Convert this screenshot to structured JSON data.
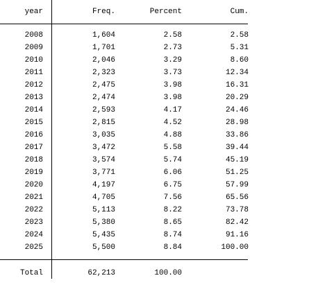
{
  "table": {
    "header": [
      "year",
      "Freq.",
      "Percent",
      "Cum."
    ],
    "rows": [
      [
        "2008",
        "1,604",
        "2.58",
        "2.58"
      ],
      [
        "2009",
        "1,701",
        "2.73",
        "5.31"
      ],
      [
        "2010",
        "2,046",
        "3.29",
        "8.60"
      ],
      [
        "2011",
        "2,323",
        "3.73",
        "12.34"
      ],
      [
        "2012",
        "2,475",
        "3.98",
        "16.31"
      ],
      [
        "2013",
        "2,474",
        "3.98",
        "20.29"
      ],
      [
        "2014",
        "2,593",
        "4.17",
        "24.46"
      ],
      [
        "2015",
        "2,815",
        "4.52",
        "28.98"
      ],
      [
        "2016",
        "3,035",
        "4.88",
        "33.86"
      ],
      [
        "2017",
        "3,472",
        "5.58",
        "39.44"
      ],
      [
        "2018",
        "3,574",
        "5.74",
        "45.19"
      ],
      [
        "2019",
        "3,771",
        "6.06",
        "51.25"
      ],
      [
        "2020",
        "4,197",
        "6.75",
        "57.99"
      ],
      [
        "2021",
        "4,705",
        "7.56",
        "65.56"
      ],
      [
        "2022",
        "5,113",
        "8.22",
        "73.78"
      ],
      [
        "2023",
        "5,380",
        "8.65",
        "82.42"
      ],
      [
        "2024",
        "5,435",
        "8.74",
        "91.16"
      ],
      [
        "2025",
        "5,500",
        "8.84",
        "100.00"
      ]
    ],
    "total": [
      "Total",
      "62,213",
      "100.00"
    ]
  }
}
